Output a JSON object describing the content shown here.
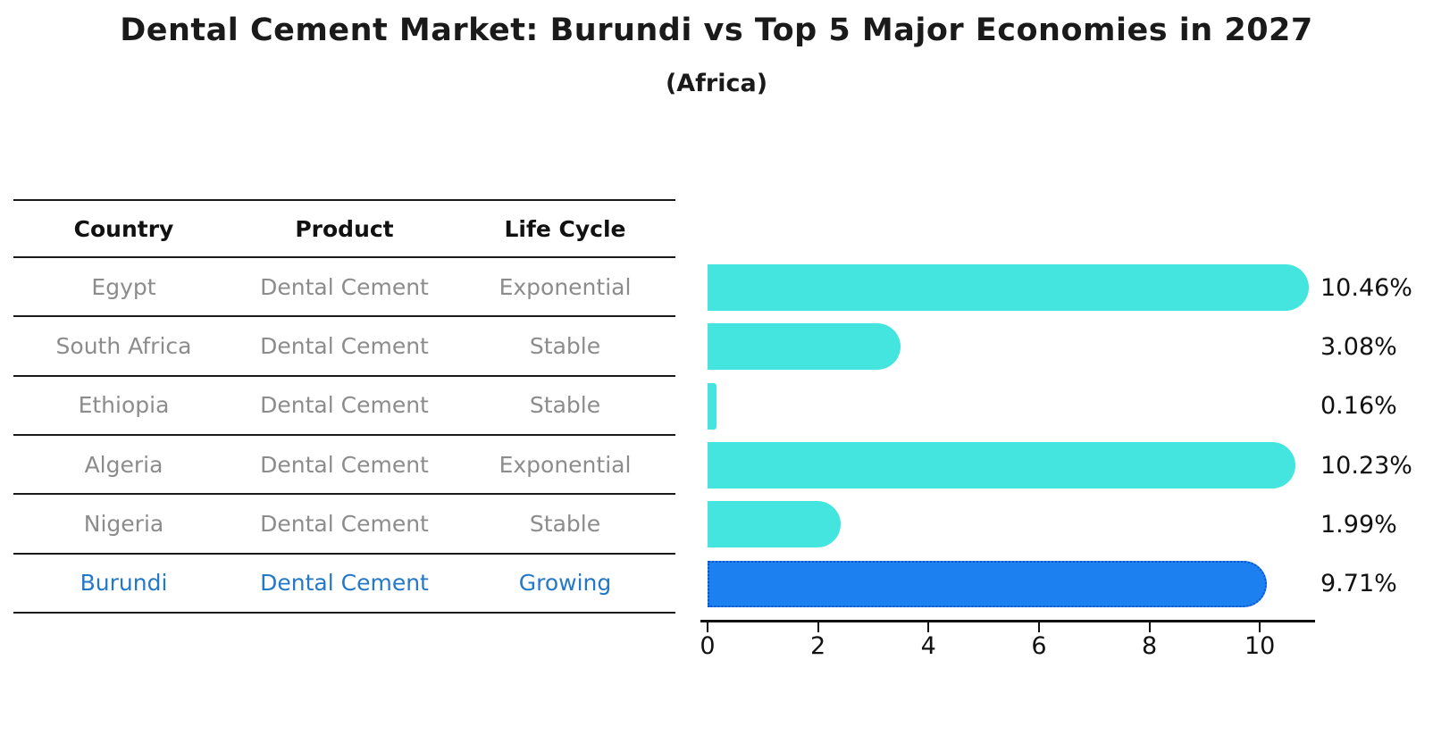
{
  "title": "Dental Cement Market: Burundi vs Top 5 Major Economies in 2027",
  "subtitle": "(Africa)",
  "table": {
    "headers": [
      "Country",
      "Product",
      "Life Cycle"
    ],
    "rows": [
      {
        "country": "Egypt",
        "product": "Dental Cement",
        "life_cycle": "Exponential",
        "highlight": false
      },
      {
        "country": "South Africa",
        "product": "Dental Cement",
        "life_cycle": "Stable",
        "highlight": false
      },
      {
        "country": "Ethiopia",
        "product": "Dental Cement",
        "life_cycle": "Stable",
        "highlight": false
      },
      {
        "country": "Algeria",
        "product": "Dental Cement",
        "life_cycle": "Exponential",
        "highlight": false
      },
      {
        "country": "Nigeria",
        "product": "Dental Cement",
        "life_cycle": "Stable",
        "highlight": false
      },
      {
        "country": "Burundi",
        "product": "Dental Cement",
        "life_cycle": "Growing",
        "highlight": true
      }
    ]
  },
  "chart_data": {
    "type": "bar",
    "orientation": "horizontal",
    "title": "Dental Cement Market: Burundi vs Top 5 Major Economies in 2027",
    "subtitle": "(Africa)",
    "categories": [
      "Egypt",
      "South Africa",
      "Ethiopia",
      "Algeria",
      "Nigeria",
      "Burundi"
    ],
    "values": [
      10.46,
      3.08,
      0.16,
      10.23,
      1.99,
      9.71
    ],
    "value_labels": [
      "10.46%",
      "3.08%",
      "0.16%",
      "10.23%",
      "1.99%",
      "9.71%"
    ],
    "x_ticks": [
      0,
      2,
      4,
      6,
      8,
      10
    ],
    "xlim": [
      0,
      11
    ],
    "grid": false,
    "legend": "none",
    "highlight_index": 5
  },
  "colors": {
    "bar_cyan": "#43E5DE",
    "bar_blue": "#1C80F0",
    "bar_blue_border": "#0C55C8",
    "cell_gray": "#8c8c8c",
    "highlight_text": "#2478c8",
    "axis_black": "#111111"
  }
}
